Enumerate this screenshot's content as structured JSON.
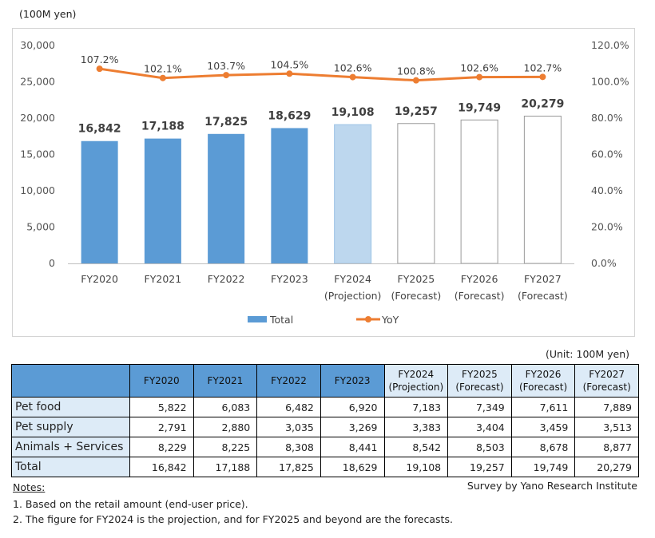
{
  "unit_label": "(100M yen)",
  "table_unit": "(Unit: 100M yen)",
  "chart_data": {
    "type": "bar+line",
    "categories": [
      [
        "FY2020"
      ],
      [
        "FY2021"
      ],
      [
        "FY2022"
      ],
      [
        "FY2023"
      ],
      [
        "FY2024",
        "(Projection)"
      ],
      [
        "FY2025",
        "(Forecast)"
      ],
      [
        "FY2026",
        "(Forecast)"
      ],
      [
        "FY2027",
        "(Forecast)"
      ]
    ],
    "series": [
      {
        "name": "Total",
        "type": "bar",
        "values": [
          16842,
          17188,
          17825,
          18629,
          19108,
          19257,
          19749,
          20279
        ],
        "labels": [
          "16,842",
          "17,188",
          "17,825",
          "18,629",
          "19,108",
          "19,257",
          "19,749",
          "20,279"
        ]
      },
      {
        "name": "YoY",
        "type": "line",
        "axis": "right",
        "values": [
          107.2,
          102.1,
          103.7,
          104.5,
          102.6,
          100.8,
          102.6,
          102.7
        ],
        "labels": [
          "107.2%",
          "102.1%",
          "103.7%",
          "104.5%",
          "102.6%",
          "100.8%",
          "102.6%",
          "102.7%"
        ]
      }
    ],
    "bar_styles": [
      "actual",
      "actual",
      "actual",
      "actual",
      "projection",
      "forecast",
      "forecast",
      "forecast"
    ],
    "ylim": [
      0,
      30000
    ],
    "y_ticks": [
      "0",
      "5,000",
      "10,000",
      "15,000",
      "20,000",
      "25,000",
      "30,000"
    ],
    "y2lim": [
      0,
      120
    ],
    "y2_ticks": [
      "0.0%",
      "20.0%",
      "40.0%",
      "60.0%",
      "80.0%",
      "100.0%",
      "120.0%"
    ],
    "grid": false,
    "legend_position": "bottom"
  },
  "colors": {
    "actual": "#5b9bd5",
    "projection": "#bdd7ee",
    "forecast": "#ffffff",
    "line": "#ed7d31"
  },
  "table": {
    "headers": [
      {
        "lines": [
          "FY2020"
        ],
        "style": "hist"
      },
      {
        "lines": [
          "FY2021"
        ],
        "style": "hist"
      },
      {
        "lines": [
          "FY2022"
        ],
        "style": "hist"
      },
      {
        "lines": [
          "FY2023"
        ],
        "style": "hist"
      },
      {
        "lines": [
          "FY2024",
          "(Projection)"
        ],
        "style": "fc"
      },
      {
        "lines": [
          "FY2025",
          "(Forecast)"
        ],
        "style": "fc"
      },
      {
        "lines": [
          "FY2026",
          "(Forecast)"
        ],
        "style": "fc"
      },
      {
        "lines": [
          "FY2027",
          "(Forecast)"
        ],
        "style": "fc"
      }
    ],
    "rows": [
      {
        "label": "Pet food",
        "values": [
          "5,822",
          "6,083",
          "6,482",
          "6,920",
          "7,183",
          "7,349",
          "7,611",
          "7,889"
        ]
      },
      {
        "label": "Pet supply",
        "values": [
          "2,791",
          "2,880",
          "3,035",
          "3,269",
          "3,383",
          "3,404",
          "3,459",
          "3,513"
        ]
      },
      {
        "label": "Animals + Services",
        "values": [
          "8,229",
          "8,225",
          "8,308",
          "8,441",
          "8,542",
          "8,503",
          "8,678",
          "8,877"
        ]
      },
      {
        "label": "Total",
        "values": [
          "16,842",
          "17,188",
          "17,825",
          "18,629",
          "19,108",
          "19,257",
          "19,749",
          "20,279"
        ]
      }
    ]
  },
  "notes": {
    "heading": "Notes:",
    "items": [
      "1. Based on the retail amount (end-user price).",
      "2. The figure for FY2024 is the projection, and for FY2025 and beyond are the forecasts."
    ]
  },
  "source": "Survey by Yano Research Institute"
}
